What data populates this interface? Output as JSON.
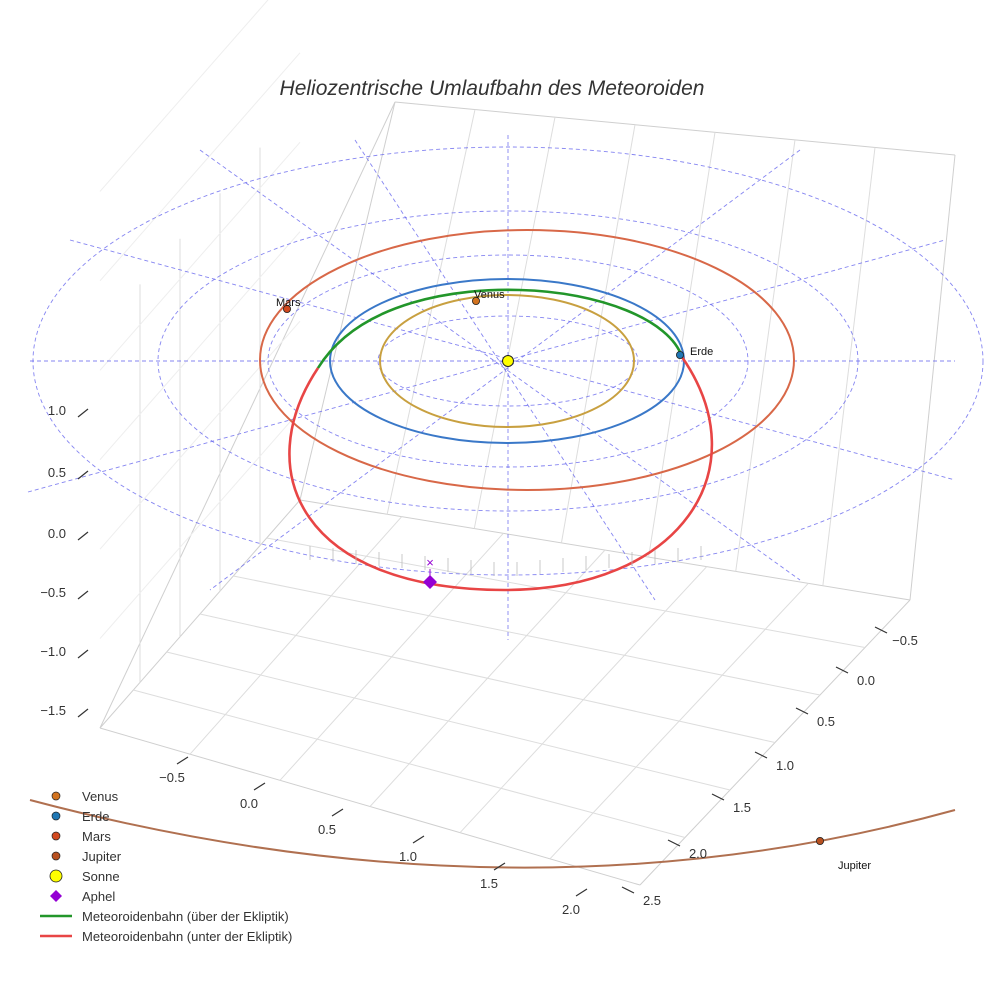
{
  "chart_data": {
    "type": "scatter3d",
    "title": "Heliozentrische Umlaufbahn des Meteoroiden",
    "axes": {
      "x": {
        "ticks": [
          "−0.5",
          "0.0",
          "0.5",
          "1.0",
          "1.5",
          "2.0"
        ],
        "range": [
          -0.9,
          2.2
        ]
      },
      "y": {
        "ticks": [
          "−0.5",
          "0.0",
          "0.5",
          "1.0",
          "1.5",
          "2.0",
          "2.5"
        ],
        "range": [
          -0.7,
          2.6
        ]
      },
      "z": {
        "ticks": [
          "1.0",
          "0.5",
          "0.0",
          "−0.5",
          "−1.0",
          "−1.5"
        ],
        "range": [
          -1.7,
          1.2
        ]
      }
    },
    "planets": [
      {
        "name": "Venus",
        "label": "Venus",
        "orbit_radius_au": 0.72,
        "color": "#c8a040",
        "marker_color": "#d2731f"
      },
      {
        "name": "Erde",
        "label": "Erde",
        "orbit_radius_au": 1.0,
        "color": "#3a78c8",
        "marker_color": "#1f77b4"
      },
      {
        "name": "Mars",
        "label": "Mars",
        "orbit_radius_au": 1.52,
        "color": "#d86848",
        "marker_color": "#d2491f"
      },
      {
        "name": "Jupiter",
        "label": "Jupiter",
        "orbit_radius_au": 5.2,
        "color": "#b07050",
        "marker_color": "#b8501f"
      }
    ],
    "sun": {
      "name": "Sonne",
      "color": "#ffff00"
    },
    "aphel": {
      "name": "Aphel",
      "color": "#9400d3"
    },
    "meteoroid_orbit": {
      "above_label": "Meteoroidenbahn (über der Ekliptik)",
      "below_label": "Meteoroidenbahn (unter der Ekliptik)",
      "above_color": "#22962a",
      "below_color": "#e84545"
    },
    "ecliptic_grid_color": "#6666ee"
  },
  "legend": {
    "items": [
      {
        "label": "Venus",
        "kind": "dot",
        "color": "#d2731f"
      },
      {
        "label": "Erde",
        "kind": "dot",
        "color": "#1f77b4"
      },
      {
        "label": "Mars",
        "kind": "dot",
        "color": "#d2491f"
      },
      {
        "label": "Jupiter",
        "kind": "dot",
        "color": "#b8501f"
      },
      {
        "label": "Sonne",
        "kind": "sun",
        "color": "#ffff00"
      },
      {
        "label": "Aphel",
        "kind": "diamond",
        "color": "#9400d3"
      },
      {
        "label": "Meteoroidenbahn (über der Ekliptik)",
        "kind": "line",
        "color": "#22962a"
      },
      {
        "label": "Meteoroidenbahn (unter der Ekliptik)",
        "kind": "line",
        "color": "#e84545"
      }
    ]
  }
}
